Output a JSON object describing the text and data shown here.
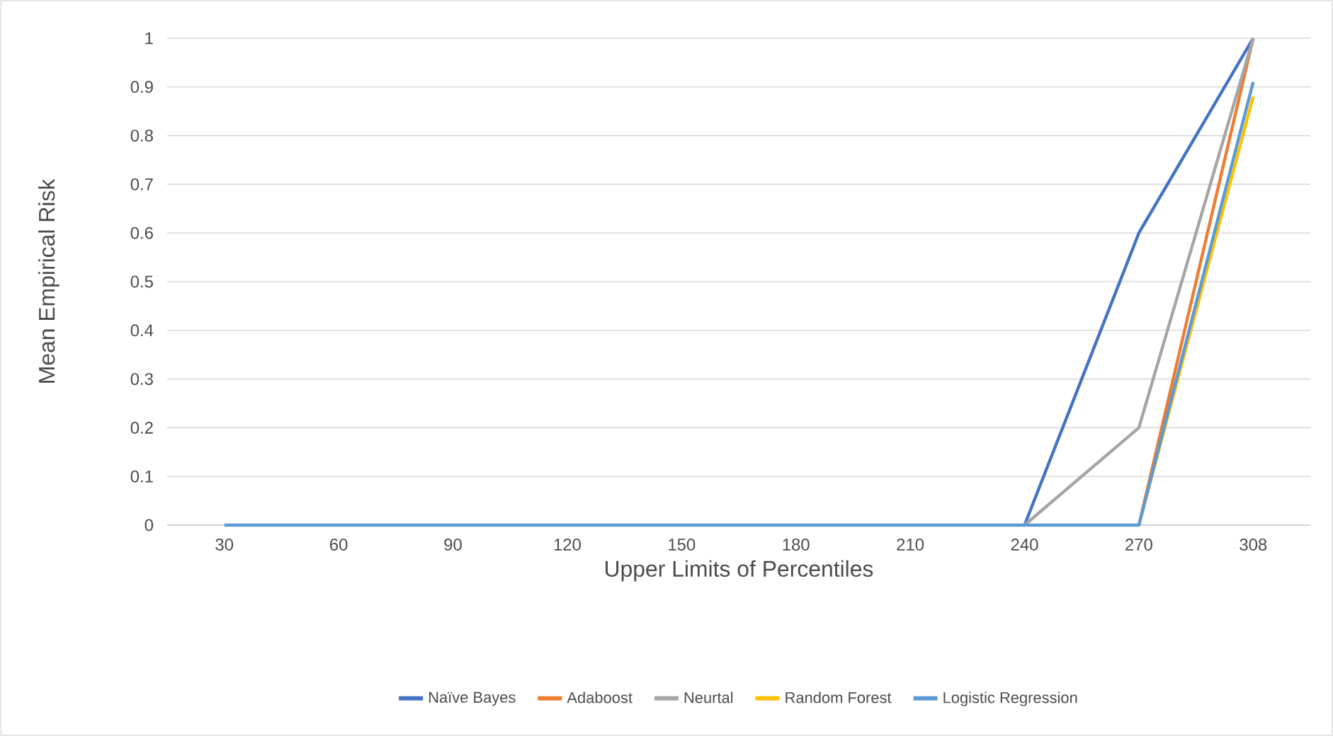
{
  "chart_data": {
    "type": "line",
    "xlabel": "Upper Limits of Percentiles",
    "ylabel": "Mean Empirical Risk",
    "categories": [
      "30",
      "60",
      "90",
      "120",
      "150",
      "180",
      "210",
      "240",
      "270",
      "308"
    ],
    "series": [
      {
        "name": "Naïve Bayes",
        "color": "#4472c4",
        "values": [
          null,
          null,
          null,
          null,
          null,
          null,
          null,
          0,
          0.6,
          1
        ]
      },
      {
        "name": "Adaboost",
        "color": "#ed7d31",
        "values": [
          null,
          null,
          null,
          null,
          null,
          null,
          null,
          null,
          0,
          1
        ]
      },
      {
        "name": "Neurtal",
        "color": "#a5a5a5",
        "values": [
          null,
          null,
          null,
          null,
          null,
          null,
          null,
          0,
          0.2,
          1
        ]
      },
      {
        "name": "Random Forest",
        "color": "#ffc000",
        "values": [
          null,
          null,
          null,
          null,
          null,
          null,
          null,
          null,
          0,
          0.88
        ]
      },
      {
        "name": "Logistic Regression",
        "color": "#5b9bd5",
        "values": [
          0,
          0,
          0,
          0,
          0,
          0,
          0,
          0,
          0,
          0.91
        ]
      }
    ],
    "ylim": [
      0,
      1
    ],
    "yticks": [
      0,
      0.1,
      0.2,
      0.3,
      0.4,
      0.5,
      0.6,
      0.7,
      0.8,
      0.9,
      1
    ],
    "grid": "y",
    "legend": "bottom",
    "marker": "none",
    "line_style": "solid"
  }
}
